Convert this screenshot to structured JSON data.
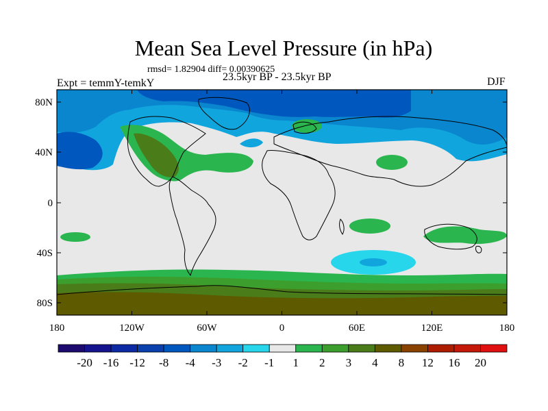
{
  "title": "Mean Sea Level Pressure (in hPa)",
  "subtitle": {
    "stats": "rmsd= 1.82904 diff= 0.00390625",
    "period": "23.5kyr BP - 23.5kyr BP"
  },
  "label_left": "Expt = temmY-temkY",
  "label_right": "DJF",
  "latitude_ticks": [
    "80N",
    "40N",
    "0",
    "40S",
    "80S"
  ],
  "longitude_ticks": [
    "180",
    "120W",
    "60W",
    "0",
    "60E",
    "120E",
    "180"
  ],
  "colorbar": {
    "labels": [
      "-20",
      "-16",
      "-12",
      "-8",
      "-4",
      "-3",
      "-2",
      "-1",
      "1",
      "2",
      "3",
      "4",
      "8",
      "12",
      "16",
      "20"
    ],
    "colors": [
      "#1c0a6e",
      "#15148e",
      "#0b2aa3",
      "#0940ae",
      "#0058be",
      "#0a86cf",
      "#11a5dd",
      "#27d6eb",
      "#e8e8e8",
      "#2ab54f",
      "#3c9e2c",
      "#4a7c1a",
      "#5e5a00",
      "#8a4200",
      "#ae1c00",
      "#c41808",
      "#e01010"
    ]
  },
  "colors": {
    "neutral": "#e8e8e8",
    "coast": "#000000"
  }
}
